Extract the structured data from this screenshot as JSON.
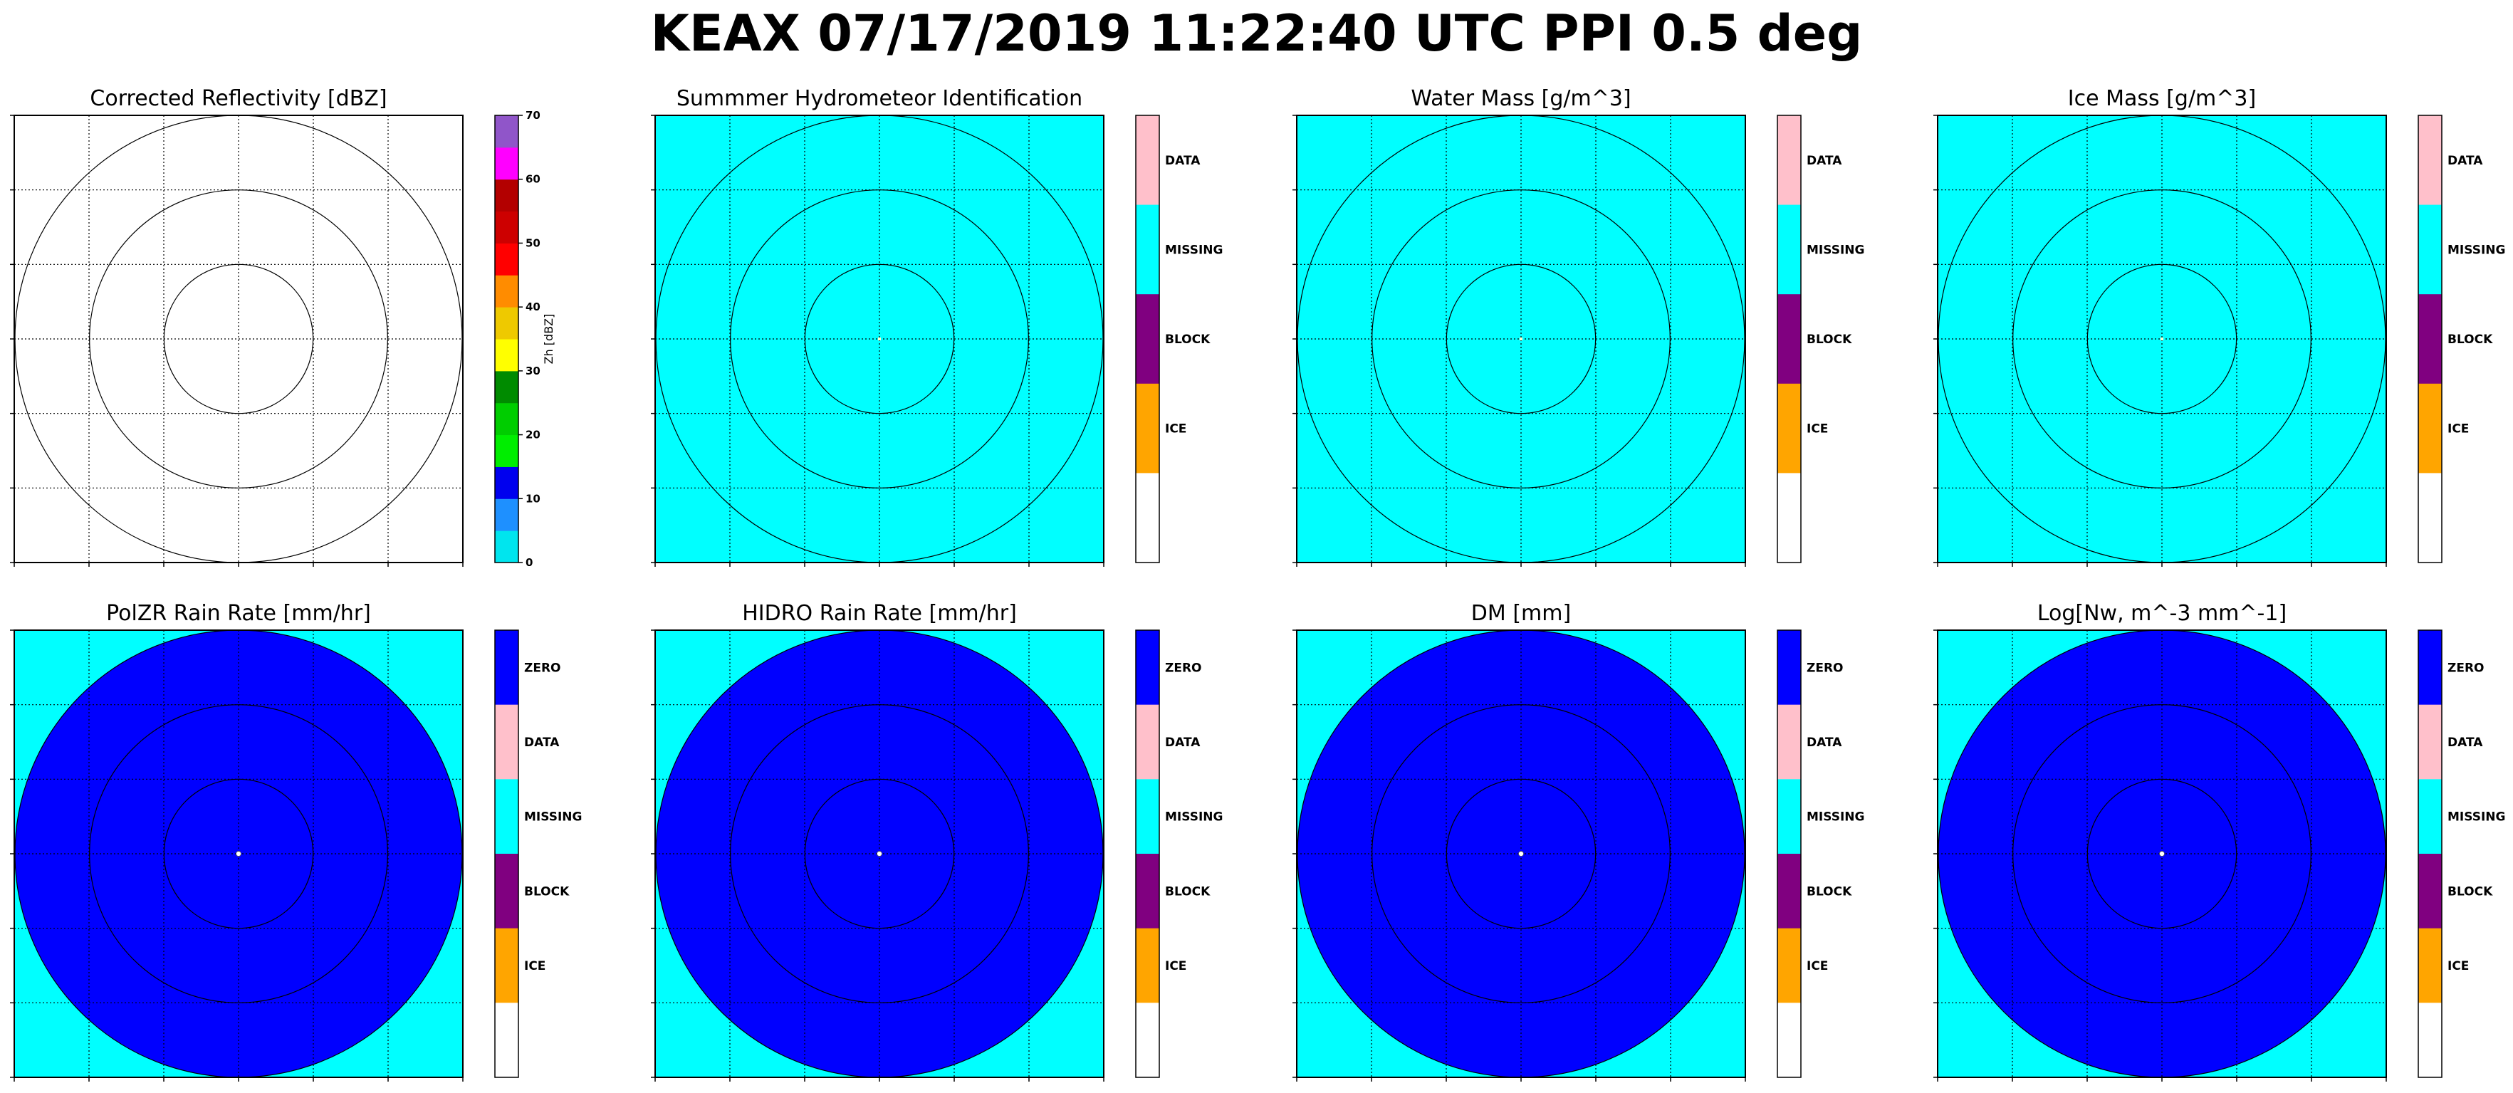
{
  "figure": {
    "title": "KEAX 07/17/2019 11:22:40 UTC PPI 0.5 deg"
  },
  "colors": {
    "cyan": "#00ffff",
    "blue": "#0000ff",
    "pink": "#ffc0cb",
    "purple": "#800080",
    "orange": "#ffa500",
    "white": "#ffffff",
    "grid": "#000000"
  },
  "chart_data": [
    {
      "type": "heatmap",
      "title": "Corrected Reflectivity [dBZ]",
      "field": "empty",
      "colorbar": {
        "kind": "continuous",
        "label": "Zh [dBZ]",
        "range": [
          0,
          70
        ],
        "ticks": [
          0,
          10,
          20,
          30,
          40,
          50,
          60,
          70
        ],
        "colors": [
          "#00e5ee",
          "#1e90ff",
          "#0000ee",
          "#00ee00",
          "#00cd00",
          "#008b00",
          "#ffff00",
          "#eec900",
          "#ff8c00",
          "#ff0000",
          "#cd0000",
          "#b30000",
          "#ff00ff",
          "#9055c9"
        ]
      },
      "range_rings": 3,
      "grid": true
    },
    {
      "type": "heatmap",
      "title": "Summmer Hydrometeor Identification",
      "field": "missing",
      "colorbar": {
        "kind": "categorical",
        "categories": [
          "DATA",
          "MISSING",
          "BLOCK",
          "ICE",
          ""
        ],
        "colors": [
          "#ffc0cb",
          "#00ffff",
          "#800080",
          "#ffa500",
          "#ffffff"
        ]
      },
      "range_rings": 3,
      "grid": true
    },
    {
      "type": "heatmap",
      "title": "Water Mass [g/m^3]",
      "field": "missing",
      "colorbar": {
        "kind": "categorical",
        "categories": [
          "DATA",
          "MISSING",
          "BLOCK",
          "ICE",
          ""
        ],
        "colors": [
          "#ffc0cb",
          "#00ffff",
          "#800080",
          "#ffa500",
          "#ffffff"
        ]
      },
      "range_rings": 3,
      "grid": true
    },
    {
      "type": "heatmap",
      "title": "Ice Mass [g/m^3]",
      "field": "missing",
      "colorbar": {
        "kind": "categorical",
        "categories": [
          "DATA",
          "MISSING",
          "BLOCK",
          "ICE",
          ""
        ],
        "colors": [
          "#ffc0cb",
          "#00ffff",
          "#800080",
          "#ffa500",
          "#ffffff"
        ]
      },
      "range_rings": 3,
      "grid": true
    },
    {
      "type": "heatmap",
      "title": "PolZR Rain Rate [mm/hr]",
      "field": "zero",
      "colorbar": {
        "kind": "categorical",
        "categories": [
          "ZERO",
          "DATA",
          "MISSING",
          "BLOCK",
          "ICE",
          ""
        ],
        "colors": [
          "#0000ff",
          "#ffc0cb",
          "#00ffff",
          "#800080",
          "#ffa500",
          "#ffffff"
        ]
      },
      "range_rings": 3,
      "grid": true
    },
    {
      "type": "heatmap",
      "title": "HIDRO Rain Rate [mm/hr]",
      "field": "zero",
      "colorbar": {
        "kind": "categorical",
        "categories": [
          "ZERO",
          "DATA",
          "MISSING",
          "BLOCK",
          "ICE",
          ""
        ],
        "colors": [
          "#0000ff",
          "#ffc0cb",
          "#00ffff",
          "#800080",
          "#ffa500",
          "#ffffff"
        ]
      },
      "range_rings": 3,
      "grid": true
    },
    {
      "type": "heatmap",
      "title": "DM [mm]",
      "field": "zero",
      "colorbar": {
        "kind": "categorical",
        "categories": [
          "ZERO",
          "DATA",
          "MISSING",
          "BLOCK",
          "ICE",
          ""
        ],
        "colors": [
          "#0000ff",
          "#ffc0cb",
          "#00ffff",
          "#800080",
          "#ffa500",
          "#ffffff"
        ]
      },
      "range_rings": 3,
      "grid": true
    },
    {
      "type": "heatmap",
      "title": "Log[Nw, m^-3 mm^-1]",
      "field": "zero",
      "colorbar": {
        "kind": "categorical",
        "categories": [
          "ZERO",
          "DATA",
          "MISSING",
          "BLOCK",
          "ICE",
          ""
        ],
        "colors": [
          "#0000ff",
          "#ffc0cb",
          "#00ffff",
          "#800080",
          "#ffa500",
          "#ffffff"
        ]
      },
      "range_rings": 3,
      "grid": true
    }
  ]
}
